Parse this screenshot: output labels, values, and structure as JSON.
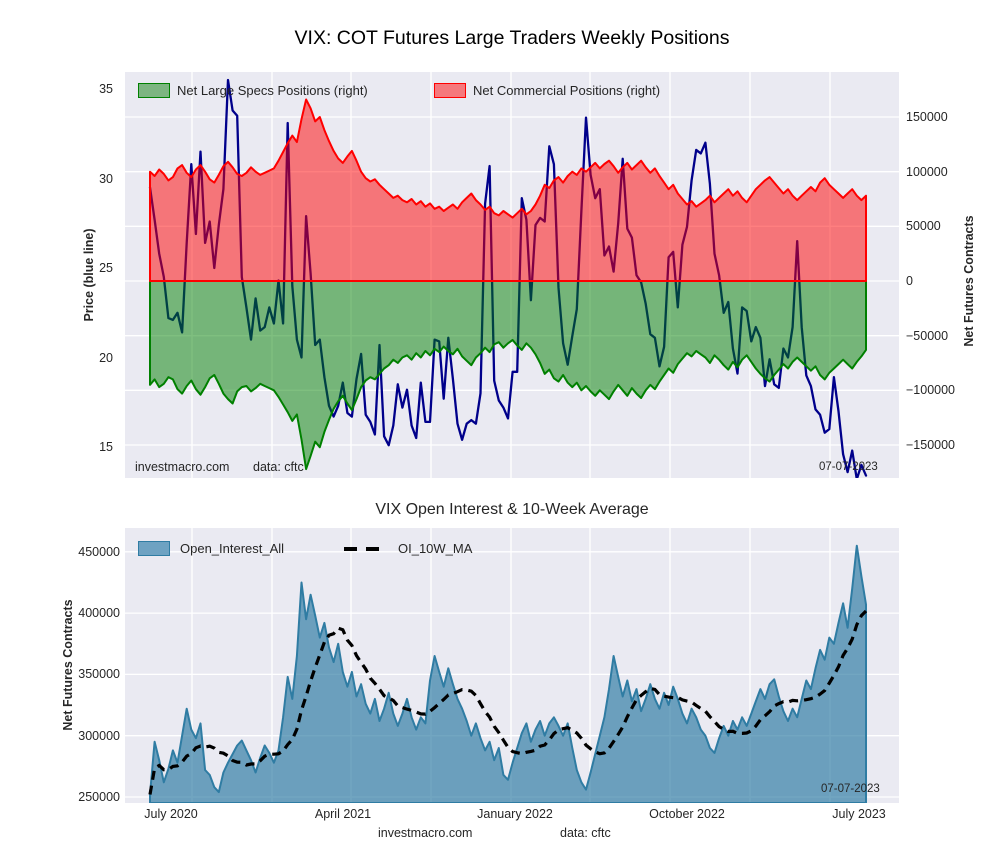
{
  "figure": {
    "background": "#ffffff",
    "plot_background": "#eaeaf2",
    "grid_color": "#ffffff"
  },
  "top_chart": {
    "title": "VIX: COT Futures Large Traders Weekly Positions",
    "left_axis": {
      "label": "Price (blue line)",
      "ticks": [
        "35",
        "30",
        "25",
        "20",
        "15"
      ],
      "tick_values": [
        35,
        30,
        25,
        20,
        15
      ]
    },
    "right_axis": {
      "label": "Net Futures Contracts",
      "ticks": [
        "150000",
        "100000",
        "50000",
        "0",
        "−50000",
        "−100000",
        "−150000"
      ],
      "tick_values": [
        150000,
        100000,
        50000,
        0,
        -50000,
        -100000,
        -150000
      ]
    },
    "legend": [
      {
        "label": "Net Large Specs Positions (right)",
        "swatch_fill": "#7db581",
        "swatch_edge": "#008000"
      },
      {
        "label": "Net Commercial Positions (right)",
        "swatch_fill": "#f5797d",
        "swatch_edge": "#ff0000"
      }
    ],
    "watermark": "investmacro.com",
    "source_note": "data: cftc",
    "date_annotation": "07-07-2023"
  },
  "bottom_chart": {
    "title": "VIX Open Interest & 10-Week Average",
    "left_axis": {
      "label": "Net Futures Contracts",
      "ticks": [
        "450000",
        "400000",
        "350000",
        "300000",
        "250000"
      ],
      "tick_values": [
        450000,
        400000,
        350000,
        300000,
        250000
      ]
    },
    "x_axis": {
      "tick_labels": [
        "July 2020",
        "April 2021",
        "January 2022",
        "October 2022",
        "July 2023"
      ]
    },
    "legend": [
      {
        "label": "Open_Interest_All",
        "swatch_fill": "#6ea2c2",
        "swatch_edge": "#2f7ca3"
      },
      {
        "label": "OI_10W_MA",
        "line_color": "#000000",
        "line_style": "dashed"
      }
    ],
    "watermark": "investmacro.com",
    "source_note": "data: cftc",
    "date_annotation": "07-07-2023"
  },
  "chart_data": [
    {
      "type": "line",
      "title": "VIX: COT Futures Large Traders Weekly Positions",
      "x_unit": "week",
      "x_start": "July 2020",
      "x_end": "07-07-2023",
      "n_points": 157,
      "ylim_left_price": [
        13.3,
        35.95
      ],
      "ylim_right_contracts": [
        -180000,
        191000
      ],
      "grid": true,
      "legend_position": "upper left inside",
      "series": [
        {
          "name": "VIX price (blue line)",
          "axis": "left",
          "color": "#00008b",
          "values": [
            29.5,
            27.7,
            25.8,
            24.5,
            22.2,
            22.1,
            22.5,
            21.4,
            26.4,
            30.8,
            26.9,
            31.5,
            26.4,
            27.6,
            25.0,
            27.4,
            29.4,
            35.5,
            33.8,
            33.5,
            24.5,
            22.8,
            21.0,
            23.3,
            21.5,
            21.7,
            22.8,
            21.9,
            24.3,
            21.9,
            33.1,
            24.0,
            21.0,
            20.0,
            27.9,
            24.7,
            20.7,
            21.0,
            18.9,
            17.3,
            16.7,
            17.3,
            18.6,
            16.9,
            16.7,
            18.8,
            20.2,
            16.8,
            16.4,
            15.7,
            20.7,
            15.6,
            15.1,
            16.2,
            18.5,
            17.2,
            18.2,
            16.2,
            15.5,
            18.6,
            16.4,
            16.4,
            21.0,
            20.9,
            17.7,
            21.1,
            18.8,
            16.3,
            15.4,
            16.3,
            16.5,
            16.3,
            18.0,
            28.6,
            30.7,
            18.7,
            17.6,
            17.2,
            16.6,
            19.2,
            19.2,
            28.9,
            27.7,
            23.2,
            27.4,
            27.8,
            27.6,
            31.8,
            30.8,
            23.9,
            20.8,
            19.6,
            21.2,
            22.7,
            28.2,
            33.4,
            30.2,
            28.9,
            29.4,
            25.7,
            26.2,
            24.8,
            27.5,
            31.1,
            27.2,
            26.7,
            24.6,
            24.2,
            23.0,
            21.3,
            21.1,
            19.5,
            20.6,
            25.6,
            25.9,
            22.8,
            26.3,
            27.3,
            29.9,
            31.6,
            31.4,
            32.0,
            29.7,
            25.8,
            24.6,
            22.5,
            23.1,
            20.5,
            19.1,
            22.8,
            22.6,
            20.9,
            21.7,
            21.1,
            18.4,
            19.9,
            18.5,
            18.3,
            20.5,
            20.0,
            21.7,
            26.5,
            21.7,
            19.0,
            18.4,
            17.1,
            16.8,
            15.8,
            16.0,
            18.9,
            17.0,
            14.6,
            13.6,
            14.8,
            13.2,
            14.0,
            13.4
          ]
        },
        {
          "name": "Net Commercial Positions",
          "axis": "right",
          "unit": "contracts x1000",
          "color": "#ff0000",
          "fill": "rgba(255,0,0,0.5)",
          "values": [
            100,
            96,
            102,
            98,
            92,
            95,
            103,
            106,
            99,
            95,
            102,
            106,
            100,
            93,
            90,
            97,
            105,
            109,
            104,
            98,
            96,
            99,
            104,
            100,
            97,
            99,
            101,
            103,
            110,
            118,
            126,
            133,
            127,
            148,
            166,
            158,
            146,
            150,
            138,
            128,
            119,
            112,
            108,
            114,
            119,
            110,
            100,
            94,
            91,
            93,
            88,
            84,
            80,
            76,
            78,
            74,
            72,
            75,
            70,
            73,
            68,
            71,
            66,
            68,
            64,
            67,
            70,
            66,
            72,
            76,
            80,
            74,
            70,
            65,
            68,
            62,
            60,
            64,
            61,
            58,
            62,
            66,
            61,
            64,
            70,
            78,
            88,
            85,
            92,
            95,
            90,
            96,
            100,
            97,
            103,
            100,
            104,
            108,
            103,
            107,
            110,
            105,
            99,
            104,
            108,
            102,
            106,
            110,
            104,
            99,
            103,
            96,
            90,
            84,
            88,
            80,
            75,
            70,
            73,
            68,
            71,
            74,
            78,
            72,
            76,
            80,
            84,
            78,
            82,
            76,
            72,
            78,
            84,
            88,
            92,
            95,
            90,
            85,
            80,
            84,
            78,
            74,
            78,
            82,
            86,
            82,
            90,
            94,
            88,
            84,
            80,
            76,
            80,
            84,
            78,
            74,
            78
          ]
        },
        {
          "name": "Net Large Specs Positions",
          "axis": "right",
          "unit": "contracts x1000",
          "color": "#008000",
          "fill": "rgba(0,128,0,0.5)",
          "values": [
            -95,
            -90,
            -97,
            -94,
            -88,
            -90,
            -99,
            -103,
            -96,
            -91,
            -99,
            -104,
            -97,
            -89,
            -86,
            -94,
            -103,
            -108,
            -112,
            -101,
            -97,
            -96,
            -101,
            -98,
            -94,
            -96,
            -98,
            -100,
            -106,
            -113,
            -120,
            -128,
            -122,
            -145,
            -172,
            -160,
            -147,
            -152,
            -138,
            -127,
            -117,
            -110,
            -105,
            -112,
            -118,
            -108,
            -97,
            -91,
            -88,
            -90,
            -85,
            -80,
            -77,
            -72,
            -75,
            -70,
            -68,
            -72,
            -66,
            -70,
            -64,
            -68,
            -62,
            -65,
            -60,
            -64,
            -67,
            -62,
            -69,
            -73,
            -77,
            -70,
            -66,
            -61,
            -65,
            -58,
            -56,
            -61,
            -57,
            -54,
            -59,
            -63,
            -57,
            -61,
            -67,
            -75,
            -85,
            -81,
            -89,
            -92,
            -86,
            -93,
            -97,
            -93,
            -100,
            -96,
            -101,
            -105,
            -100,
            -104,
            -108,
            -101,
            -95,
            -100,
            -105,
            -98,
            -103,
            -107,
            -100,
            -95,
            -99,
            -92,
            -86,
            -80,
            -84,
            -76,
            -71,
            -66,
            -69,
            -64,
            -67,
            -70,
            -75,
            -68,
            -72,
            -77,
            -81,
            -74,
            -79,
            -72,
            -68,
            -74,
            -80,
            -85,
            -89,
            -92,
            -86,
            -81,
            -76,
            -80,
            -74,
            -70,
            -74,
            -78,
            -82,
            -78,
            -86,
            -90,
            -84,
            -80,
            -76,
            -72,
            -76,
            -80,
            -74,
            -69,
            -63
          ]
        }
      ]
    },
    {
      "type": "area",
      "title": "VIX Open Interest & 10-Week Average",
      "x_unit": "week",
      "x_start": "July 2020",
      "x_end": "07-07-2023",
      "n_points": 157,
      "ylim_contracts": [
        245000,
        469000
      ],
      "grid": true,
      "x_tick_labels": [
        "July 2020",
        "April 2021",
        "January 2022",
        "October 2022",
        "July 2023"
      ],
      "series": [
        {
          "name": "Open_Interest_All",
          "unit": "contracts x1000",
          "color": "#2f7ca3",
          "fill": "rgba(47,124,163,0.68)",
          "values": [
            252,
            295,
            280,
            262,
            273,
            288,
            278,
            300,
            322,
            305,
            298,
            310,
            272,
            268,
            258,
            254,
            270,
            278,
            285,
            292,
            296,
            288,
            280,
            270,
            282,
            292,
            286,
            278,
            288,
            315,
            348,
            330,
            365,
            425,
            395,
            415,
            398,
            380,
            392,
            372,
            360,
            375,
            352,
            340,
            352,
            332,
            342,
            326,
            318,
            330,
            312,
            322,
            335,
            318,
            308,
            318,
            330,
            315,
            305,
            315,
            310,
            345,
            365,
            352,
            340,
            355,
            342,
            330,
            322,
            312,
            300,
            310,
            298,
            288,
            295,
            280,
            290,
            268,
            264,
            278,
            290,
            302,
            310,
            295,
            305,
            312,
            300,
            310,
            315,
            308,
            300,
            310,
            290,
            272,
            262,
            256,
            270,
            285,
            300,
            315,
            338,
            365,
            348,
            332,
            345,
            328,
            338,
            320,
            330,
            342,
            330,
            322,
            335,
            325,
            340,
            330,
            318,
            310,
            322,
            315,
            305,
            300,
            290,
            286,
            298,
            308,
            300,
            312,
            305,
            315,
            308,
            318,
            328,
            338,
            330,
            342,
            346,
            332,
            320,
            312,
            322,
            315,
            330,
            345,
            338,
            355,
            370,
            362,
            380,
            375,
            392,
            408,
            388,
            420,
            455,
            430,
            407
          ]
        },
        {
          "name": "OI_10W_MA",
          "unit": "contracts x1000",
          "color": "#000000",
          "style": "dashed",
          "derived": "10-week trailing mean of Open_Interest_All"
        }
      ]
    }
  ]
}
